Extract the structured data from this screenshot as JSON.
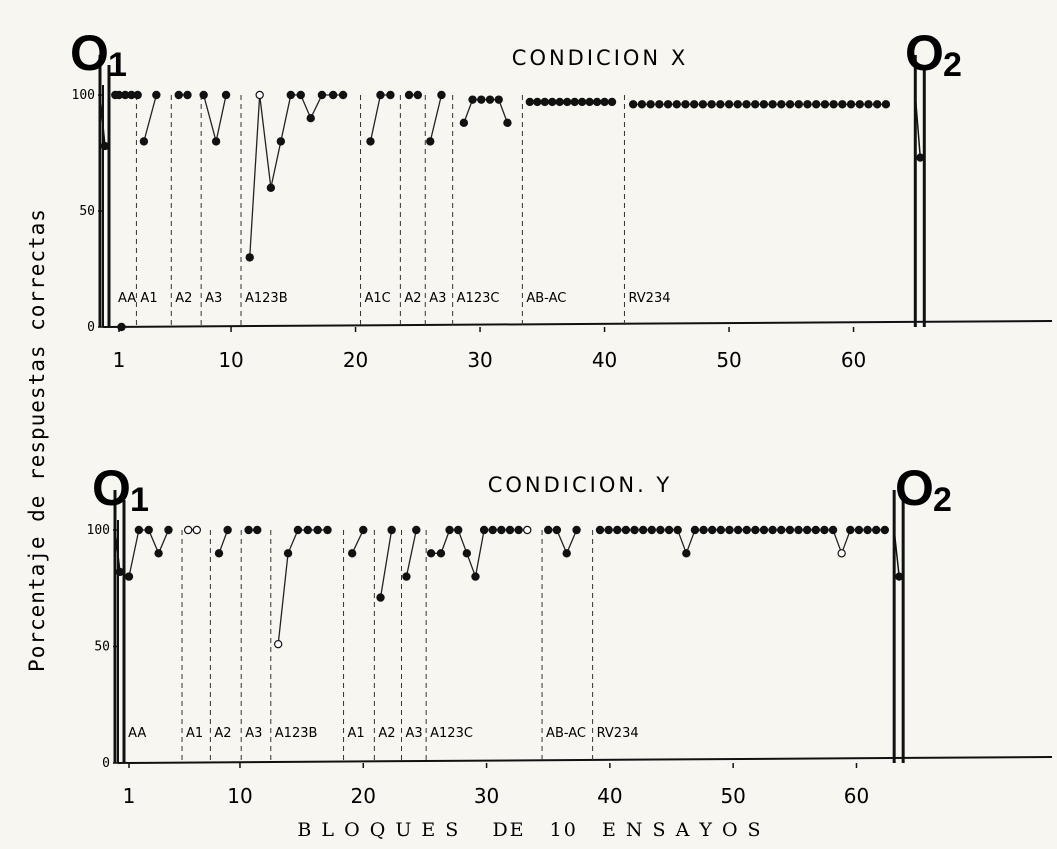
{
  "ylabel": "Porcentaje de respuestas correctas",
  "xlabel": "B L O Q U E S    DE   10   E N S A Y O S",
  "chart_data": [
    {
      "type": "line",
      "title": "CONDICION X",
      "ylim": [
        0,
        100
      ],
      "xlim": [
        0,
        68
      ],
      "yticks": [
        "0",
        "50",
        "100"
      ],
      "xticks": [
        1,
        10,
        20,
        30,
        40,
        50,
        60
      ],
      "observations": [
        {
          "label": "O",
          "sub": "1",
          "x": 0,
          "dips": [
            78
          ],
          "fills": [
            true
          ]
        },
        {
          "label": "O",
          "sub": "2",
          "x": 65.2,
          "dips": [
            73
          ],
          "fills": [
            true
          ]
        }
      ],
      "phases": [
        {
          "label": "AA",
          "start": 0.6,
          "end": 2.4
        },
        {
          "label": "A1",
          "start": 2.4,
          "end": 5.2
        },
        {
          "label": "A2",
          "start": 5.2,
          "end": 7.6
        },
        {
          "label": "A3",
          "start": 7.6,
          "end": 10.8
        },
        {
          "label": "A123B",
          "start": 10.8,
          "end": 20.4
        },
        {
          "label": "A1C",
          "start": 20.4,
          "end": 23.6
        },
        {
          "label": "A2",
          "start": 23.6,
          "end": 25.6
        },
        {
          "label": "A3",
          "start": 25.6,
          "end": 27.8
        },
        {
          "label": "A123C",
          "start": 27.8,
          "end": 33.4
        },
        {
          "label": "AB-AC",
          "start": 33.4,
          "end": 41.6
        },
        {
          "label": "RV234",
          "start": 41.6,
          "end": 63
        }
      ],
      "segments": [
        {
          "x": [
            0.7,
            1
          ],
          "y": [
            100,
            100
          ],
          "filled": [
            true,
            true
          ]
        },
        {
          "x": [
            1.5,
            2,
            2.5
          ],
          "y": [
            100,
            100,
            100
          ],
          "filled": [
            true,
            true,
            true
          ]
        },
        {
          "x": [
            1.2
          ],
          "y": [
            0
          ],
          "filled": [
            true
          ]
        },
        {
          "x": [
            3,
            4
          ],
          "y": [
            80,
            100
          ],
          "filled": [
            true,
            true
          ]
        },
        {
          "x": [
            5.8,
            6.5
          ],
          "y": [
            100,
            100
          ],
          "filled": [
            true,
            true
          ]
        },
        {
          "x": [
            7.8,
            8.8,
            9.6
          ],
          "y": [
            100,
            80,
            100
          ],
          "filled": [
            true,
            true,
            true
          ]
        },
        {
          "x": [
            11.5,
            12.3,
            13.2,
            14,
            14.8,
            15.6,
            16.4,
            17.3,
            18.2,
            19
          ],
          "y": [
            30,
            100,
            60,
            80,
            100,
            100,
            90,
            100,
            100,
            100
          ],
          "filled": [
            true,
            false,
            true,
            true,
            true,
            true,
            true,
            true,
            true,
            true
          ]
        },
        {
          "x": [
            21.2,
            22,
            22.8
          ],
          "y": [
            80,
            100,
            100
          ],
          "filled": [
            true,
            true,
            true
          ]
        },
        {
          "x": [
            24.3,
            25
          ],
          "y": [
            100,
            100
          ],
          "filled": [
            true,
            true
          ]
        },
        {
          "x": [
            26,
            26.9
          ],
          "y": [
            80,
            100
          ],
          "filled": [
            true,
            true
          ]
        },
        {
          "x": [
            28.7,
            29.4,
            30.1,
            30.8,
            31.5,
            32.2
          ],
          "y": [
            88,
            98,
            98,
            98,
            98,
            88
          ],
          "filled": [
            true,
            true,
            true,
            true,
            true,
            true
          ]
        },
        {
          "x": [
            34,
            34.6,
            35.2,
            35.8,
            36.4,
            37,
            37.6,
            38.2,
            38.8,
            39.4,
            40,
            40.6
          ],
          "y": [
            97,
            97,
            97,
            97,
            97,
            97,
            97,
            97,
            97,
            97,
            97,
            97
          ],
          "filled": [
            true,
            true,
            true,
            true,
            true,
            true,
            true,
            true,
            true,
            true,
            true,
            true
          ]
        },
        {
          "x": [
            42.3,
            43,
            43.7,
            44.4,
            45.1,
            45.8,
            46.5,
            47.2,
            47.9,
            48.6,
            49.3,
            50,
            50.7,
            51.4,
            52.1,
            52.8,
            53.5,
            54.2,
            54.9,
            55.6,
            56.3,
            57,
            57.7,
            58.4,
            59.1,
            59.8,
            60.5,
            61.2,
            61.9,
            62.6
          ],
          "y": [
            96,
            96,
            96,
            96,
            96,
            96,
            96,
            96,
            96,
            96,
            96,
            96,
            96,
            96,
            96,
            96,
            96,
            96,
            96,
            96,
            96,
            96,
            96,
            96,
            96,
            96,
            96,
            96,
            96,
            96
          ],
          "filled": [
            true,
            true,
            true,
            true,
            true,
            true,
            true,
            true,
            true,
            true,
            true,
            true,
            true,
            true,
            true,
            true,
            true,
            true,
            true,
            true,
            true,
            true,
            true,
            true,
            true,
            true,
            true,
            true,
            true,
            true
          ]
        }
      ]
    },
    {
      "type": "line",
      "title": "CONDICION. Y",
      "ylim": [
        0,
        100
      ],
      "xlim": [
        0,
        68
      ],
      "yticks": [
        "0",
        "50",
        "100"
      ],
      "xticks": [
        1,
        10,
        20,
        30,
        40,
        50,
        60
      ],
      "observations": [
        {
          "label": "O",
          "sub": "1",
          "x": 0,
          "dips": [
            82
          ],
          "fills": [
            true
          ]
        },
        {
          "label": "O",
          "sub": "2",
          "x": 63.3,
          "dips": [
            80
          ],
          "fills": [
            true
          ]
        }
      ],
      "phases": [
        {
          "label": "AA",
          "start": 0.6,
          "end": 5.3
        },
        {
          "label": "A1",
          "start": 5.3,
          "end": 7.6
        },
        {
          "label": "A2",
          "start": 7.6,
          "end": 10.1
        },
        {
          "label": "A3",
          "start": 10.1,
          "end": 12.5
        },
        {
          "label": "A123B",
          "start": 12.5,
          "end": 18.4
        },
        {
          "label": "A1",
          "start": 18.4,
          "end": 20.9
        },
        {
          "label": "A2",
          "start": 20.9,
          "end": 23.1
        },
        {
          "label": "A3",
          "start": 23.1,
          "end": 25.1
        },
        {
          "label": "A123C",
          "start": 25.1,
          "end": 34.5
        },
        {
          "label": "AB-AC",
          "start": 34.5,
          "end": 38.6
        },
        {
          "label": "RV234",
          "start": 38.6,
          "end": 63
        }
      ],
      "segments": [
        {
          "x": [
            1,
            1.8,
            2.6,
            3.4,
            4.2
          ],
          "y": [
            80,
            100,
            100,
            90,
            100
          ],
          "filled": [
            true,
            true,
            true,
            true,
            true
          ]
        },
        {
          "x": [
            5.8,
            6.5
          ],
          "y": [
            100,
            100
          ],
          "filled": [
            false,
            false
          ]
        },
        {
          "x": [
            8.3,
            9
          ],
          "y": [
            90,
            100
          ],
          "filled": [
            true,
            true
          ]
        },
        {
          "x": [
            10.7,
            11.4
          ],
          "y": [
            100,
            100
          ],
          "filled": [
            true,
            true
          ]
        },
        {
          "x": [
            13.1,
            13.9,
            14.7,
            15.5,
            16.3,
            17.1
          ],
          "y": [
            51,
            90,
            100,
            100,
            100,
            100
          ],
          "filled": [
            false,
            true,
            true,
            true,
            true,
            true
          ]
        },
        {
          "x": [
            19.1,
            20
          ],
          "y": [
            90,
            100
          ],
          "filled": [
            true,
            true
          ]
        },
        {
          "x": [
            21.4,
            22.3
          ],
          "y": [
            71,
            100
          ],
          "filled": [
            true,
            true
          ]
        },
        {
          "x": [
            23.5,
            24.3
          ],
          "y": [
            80,
            100
          ],
          "filled": [
            true,
            true
          ]
        },
        {
          "x": [
            25.5,
            26.3,
            27,
            27.7,
            28.4,
            29.1,
            29.8,
            30.5,
            31.2,
            31.9,
            32.6,
            33.3
          ],
          "y": [
            90,
            90,
            100,
            100,
            90,
            80,
            100,
            100,
            100,
            100,
            100,
            100
          ],
          "filled": [
            true,
            true,
            true,
            true,
            true,
            true,
            true,
            true,
            true,
            true,
            true,
            false
          ]
        },
        {
          "x": [
            35,
            35.7,
            36.5,
            37.3
          ],
          "y": [
            100,
            100,
            90,
            100
          ],
          "filled": [
            true,
            true,
            true,
            true
          ]
        },
        {
          "x": [
            39.2,
            39.9,
            40.6,
            41.3,
            42,
            42.7,
            43.4,
            44.1,
            44.8,
            45.5,
            46.2,
            46.9,
            47.6,
            48.3,
            49,
            49.7,
            50.4,
            51.1,
            51.8,
            52.5,
            53.2,
            53.9,
            54.6,
            55.3,
            56,
            56.7,
            57.4,
            58.1,
            58.8,
            59.5,
            60.2,
            60.9,
            61.6,
            62.3
          ],
          "y": [
            100,
            100,
            100,
            100,
            100,
            100,
            100,
            100,
            100,
            100,
            90,
            100,
            100,
            100,
            100,
            100,
            100,
            100,
            100,
            100,
            100,
            100,
            100,
            100,
            100,
            100,
            100,
            100,
            90,
            100,
            100,
            100,
            100,
            100
          ],
          "filled": [
            true,
            true,
            true,
            true,
            true,
            true,
            true,
            true,
            true,
            true,
            true,
            true,
            true,
            true,
            true,
            true,
            true,
            true,
            true,
            true,
            true,
            true,
            true,
            true,
            true,
            true,
            true,
            true,
            false,
            true,
            true,
            true,
            true,
            true
          ]
        }
      ]
    }
  ]
}
